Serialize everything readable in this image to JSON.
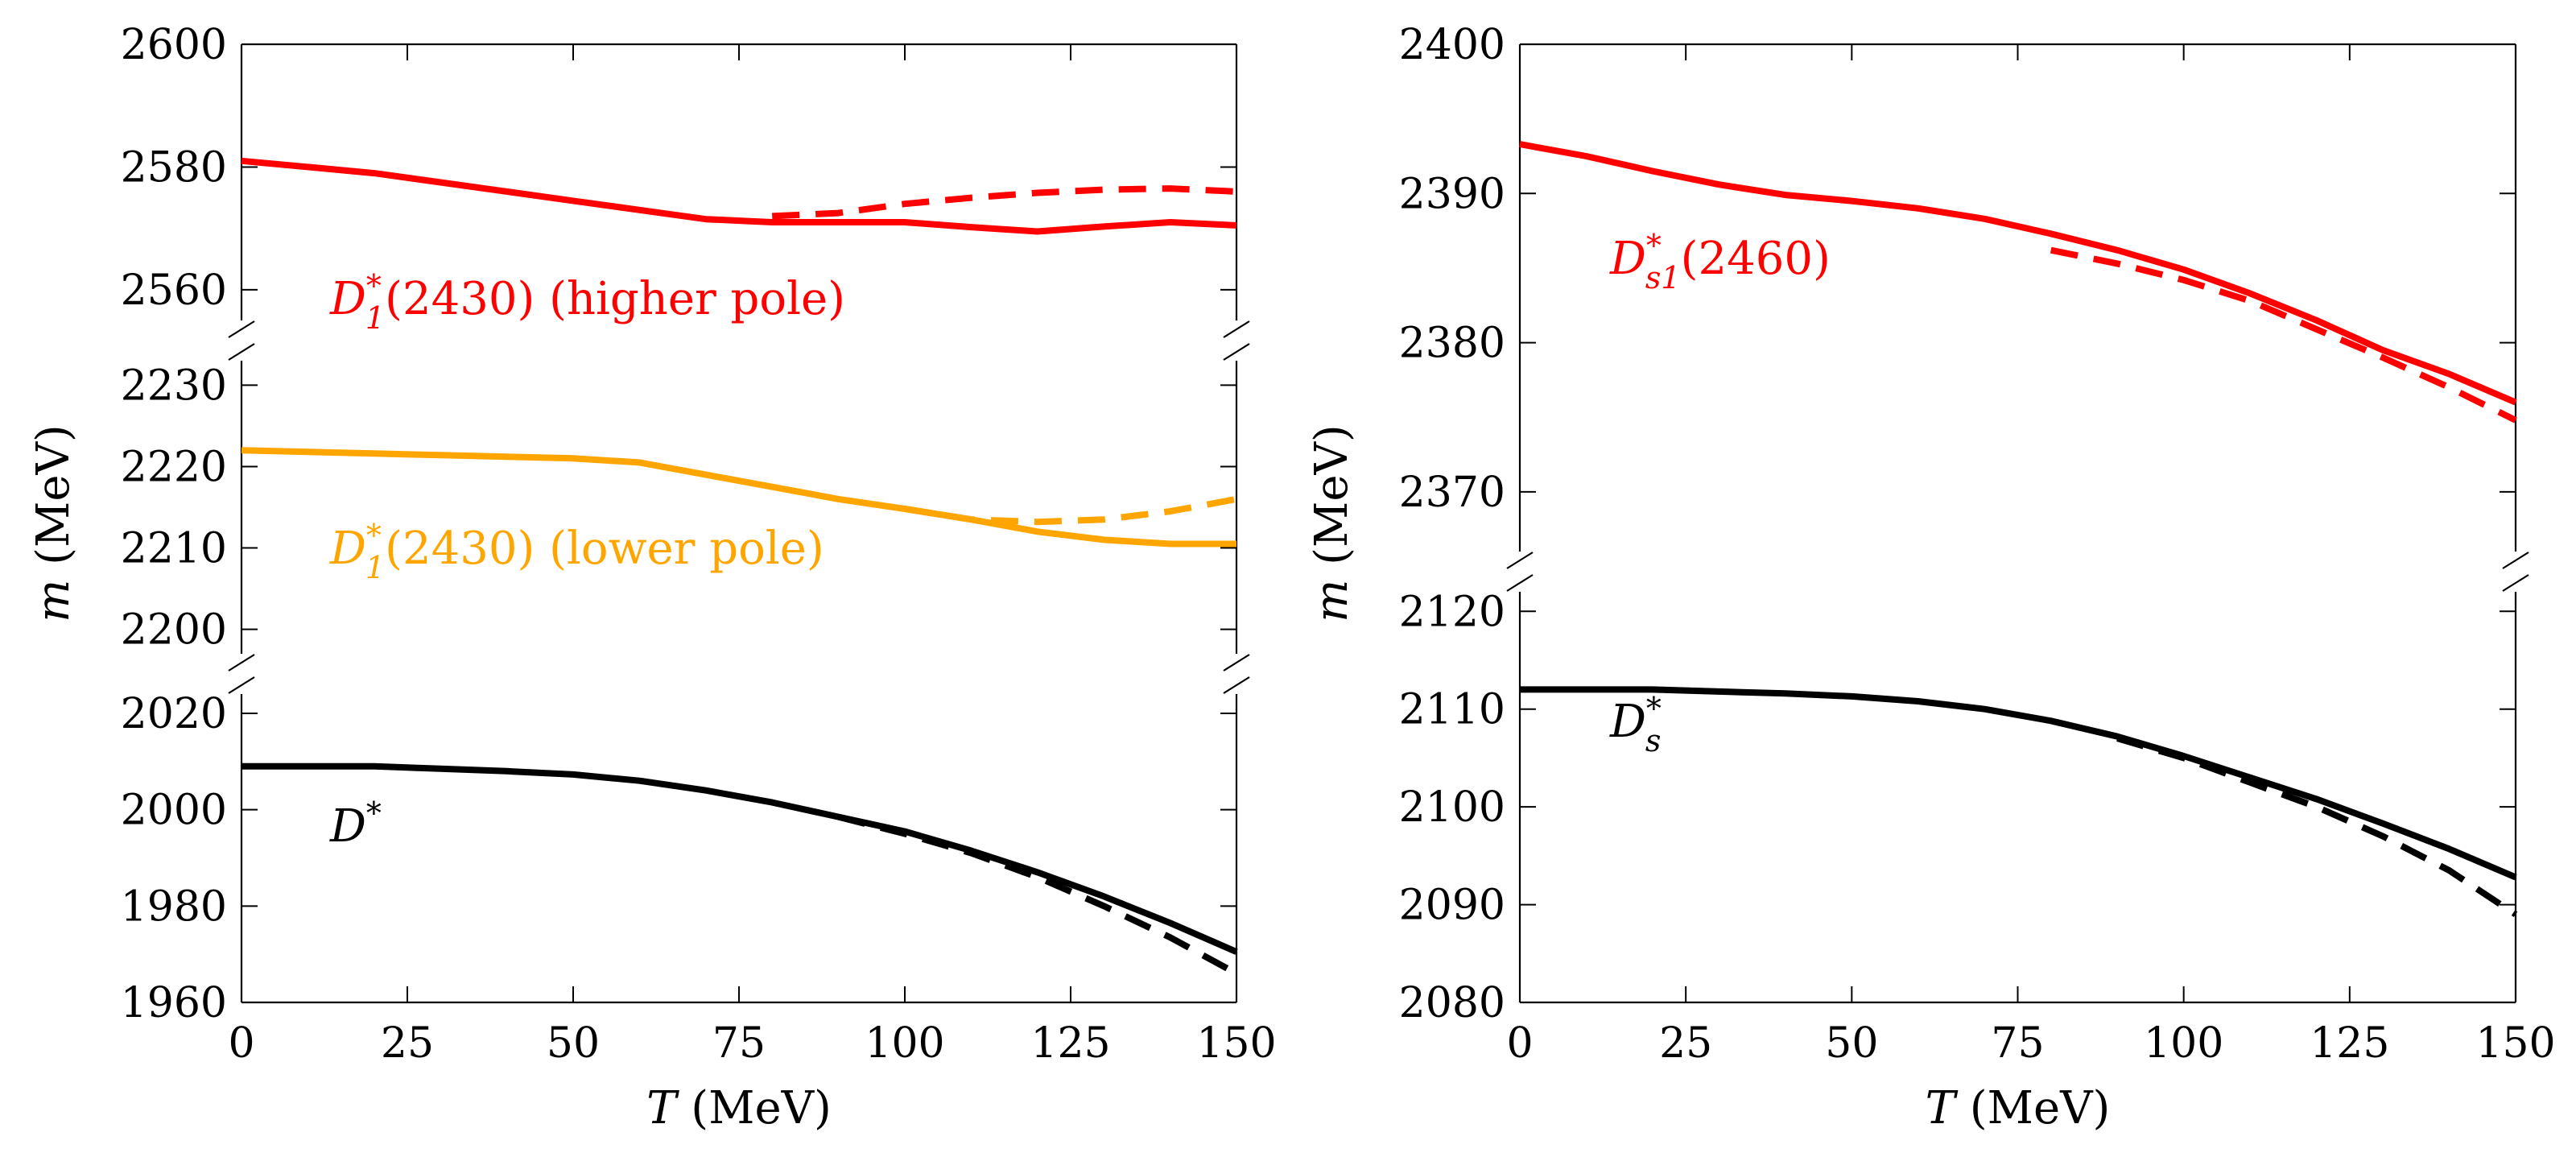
{
  "chart_data": [
    {
      "type": "line",
      "xlabel": "T (MeV)",
      "ylabel": "m (MeV)",
      "xlim": [
        0,
        150
      ],
      "x_ticks": [
        "0",
        "25",
        "50",
        "75",
        "100",
        "125",
        "150"
      ],
      "broken_y_axis": true,
      "segments": [
        {
          "ylim": [
            2555,
            2600
          ],
          "y_ticks": [
            "2560",
            "2580",
            "2600"
          ],
          "series": [
            {
              "label": "D*1(2430) (higher pole)",
              "color": "#ff0000",
              "solid": [
                [
                  0,
                  2581
                ],
                [
                  10,
                  2580
                ],
                [
                  20,
                  2579
                ],
                [
                  30,
                  2577.5
                ],
                [
                  40,
                  2576
                ],
                [
                  50,
                  2574.5
                ],
                [
                  60,
                  2573
                ],
                [
                  70,
                  2571.5
                ],
                [
                  80,
                  2571
                ],
                [
                  90,
                  2571
                ],
                [
                  100,
                  2571
                ],
                [
                  110,
                  2570.2
                ],
                [
                  120,
                  2569.5
                ],
                [
                  130,
                  2570.3
                ],
                [
                  140,
                  2571
                ],
                [
                  150,
                  2570.5
                ]
              ],
              "dashed": [
                [
                  80,
                  2572
                ],
                [
                  90,
                  2572.5
                ],
                [
                  100,
                  2574
                ],
                [
                  110,
                  2575
                ],
                [
                  120,
                  2575.8
                ],
                [
                  130,
                  2576.3
                ],
                [
                  140,
                  2576.5
                ],
                [
                  150,
                  2576
                ]
              ]
            }
          ]
        },
        {
          "ylim": [
            2197,
            2233
          ],
          "y_ticks": [
            "2200",
            "2210",
            "2220",
            "2230"
          ],
          "series": [
            {
              "label": "D*1(2430) (lower pole)",
              "color": "#ffa500",
              "solid": [
                [
                  0,
                  2222
                ],
                [
                  10,
                  2221.8
                ],
                [
                  20,
                  2221.6
                ],
                [
                  30,
                  2221.4
                ],
                [
                  40,
                  2221.2
                ],
                [
                  50,
                  2221
                ],
                [
                  60,
                  2220.5
                ],
                [
                  70,
                  2219
                ],
                [
                  80,
                  2217.5
                ],
                [
                  90,
                  2216
                ],
                [
                  100,
                  2214.8
                ],
                [
                  110,
                  2213.5
                ],
                [
                  120,
                  2212
                ],
                [
                  130,
                  2211
                ],
                [
                  140,
                  2210.5
                ],
                [
                  150,
                  2210.5
                ]
              ],
              "dashed": [
                [
                  100,
                  2214.8
                ],
                [
                  110,
                  2213.5
                ],
                [
                  120,
                  2213.2
                ],
                [
                  130,
                  2213.5
                ],
                [
                  140,
                  2214.5
                ],
                [
                  150,
                  2216
                ]
              ]
            }
          ]
        },
        {
          "ylim": [
            1960,
            2024
          ],
          "y_ticks": [
            "1960",
            "1980",
            "2000",
            "2020"
          ],
          "series": [
            {
              "label": "D*",
              "color": "#000000",
              "solid": [
                [
                  0,
                  2009
                ],
                [
                  10,
                  2009
                ],
                [
                  20,
                  2009
                ],
                [
                  30,
                  2008.5
                ],
                [
                  40,
                  2008
                ],
                [
                  50,
                  2007.3
                ],
                [
                  60,
                  2006
                ],
                [
                  70,
                  2004
                ],
                [
                  80,
                  2001.5
                ],
                [
                  90,
                  1998.5
                ],
                [
                  100,
                  1995.5
                ],
                [
                  110,
                  1991.5
                ],
                [
                  120,
                  1987
                ],
                [
                  130,
                  1982
                ],
                [
                  140,
                  1976.5
                ],
                [
                  150,
                  1970.5
                ]
              ],
              "dashed": [
                [
                  90,
                  1998.5
                ],
                [
                  100,
                  1995
                ],
                [
                  110,
                  1991
                ],
                [
                  120,
                  1986
                ],
                [
                  130,
                  1980
                ],
                [
                  140,
                  1973.5
                ],
                [
                  150,
                  1966
                ]
              ]
            }
          ]
        }
      ]
    },
    {
      "type": "line",
      "xlabel": "T (MeV)",
      "ylabel": "m (MeV)",
      "xlim": [
        0,
        150
      ],
      "x_ticks": [
        "0",
        "25",
        "50",
        "75",
        "100",
        "125",
        "150"
      ],
      "broken_y_axis": true,
      "segments": [
        {
          "ylim": [
            2366,
            2400
          ],
          "y_ticks": [
            "2370",
            "2380",
            "2390",
            "2400"
          ],
          "series": [
            {
              "label": "D*s1(2460)",
              "color": "#ff0000",
              "solid": [
                [
                  0,
                  2393.3
                ],
                [
                  10,
                  2392.5
                ],
                [
                  20,
                  2391.5
                ],
                [
                  30,
                  2390.6
                ],
                [
                  40,
                  2389.9
                ],
                [
                  50,
                  2389.5
                ],
                [
                  60,
                  2389
                ],
                [
                  70,
                  2388.3
                ],
                [
                  80,
                  2387.3
                ],
                [
                  90,
                  2386.2
                ],
                [
                  100,
                  2384.9
                ],
                [
                  110,
                  2383.3
                ],
                [
                  120,
                  2381.5
                ],
                [
                  130,
                  2379.5
                ],
                [
                  140,
                  2377.9
                ],
                [
                  150,
                  2376
                ]
              ],
              "dashed": [
                [
                  80,
                  2386.2
                ],
                [
                  90,
                  2385.3
                ],
                [
                  100,
                  2384.2
                ],
                [
                  110,
                  2382.8
                ],
                [
                  120,
                  2380.9
                ],
                [
                  130,
                  2379
                ],
                [
                  140,
                  2377
                ],
                [
                  150,
                  2374.8
                ]
              ]
            }
          ]
        },
        {
          "ylim": [
            2080,
            2122
          ],
          "y_ticks": [
            "2080",
            "2090",
            "2100",
            "2110",
            "2120"
          ],
          "series": [
            {
              "label": "D*s",
              "color": "#000000",
              "solid": [
                [
                  0,
                  2112
                ],
                [
                  10,
                  2112
                ],
                [
                  20,
                  2112
                ],
                [
                  30,
                  2111.8
                ],
                [
                  40,
                  2111.6
                ],
                [
                  50,
                  2111.3
                ],
                [
                  60,
                  2110.8
                ],
                [
                  70,
                  2110
                ],
                [
                  80,
                  2108.8
                ],
                [
                  90,
                  2107.2
                ],
                [
                  100,
                  2105.2
                ],
                [
                  110,
                  2103
                ],
                [
                  120,
                  2100.8
                ],
                [
                  130,
                  2098.3
                ],
                [
                  140,
                  2095.7
                ],
                [
                  150,
                  2092.8
                ]
              ],
              "dashed": [
                [
                  90,
                  2107
                ],
                [
                  100,
                  2105
                ],
                [
                  110,
                  2102.5
                ],
                [
                  120,
                  2100
                ],
                [
                  130,
                  2097
                ],
                [
                  140,
                  2093.5
                ],
                [
                  150,
                  2089
                ]
              ]
            }
          ]
        }
      ]
    }
  ]
}
